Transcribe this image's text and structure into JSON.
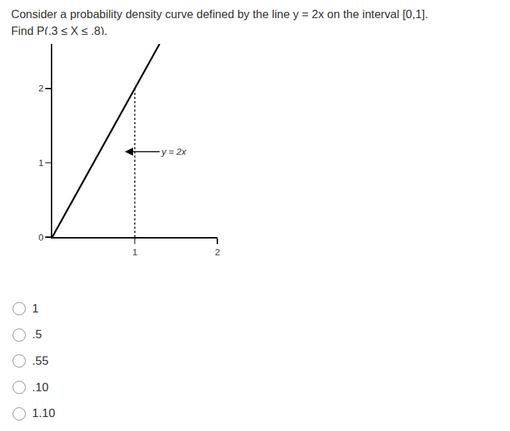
{
  "question": [
    "Consider a probability density curve defined by the line y = 2x on the interval [0,1].",
    "Find P(.3 ≤ X ≤ .8)."
  ],
  "chart_data": {
    "type": "line",
    "series": [
      {
        "x": [
          0,
          1.3
        ],
        "values": [
          0,
          2.6
        ],
        "line_style": "solid",
        "color": "#000000"
      },
      {
        "x": [
          1,
          1
        ],
        "values": [
          0,
          2
        ],
        "line_style": "dot",
        "color": "#000000"
      }
    ],
    "xlim": [
      0,
      2
    ],
    "xticks": [
      1,
      2
    ],
    "ylim": [
      0,
      2.6
    ],
    "yticks": [
      0,
      1,
      2
    ],
    "grid": false,
    "annotations": [
      {
        "text": "y = 2x",
        "x": 0.88,
        "y": 1.15,
        "ax": 1.3
      }
    ]
  },
  "options": [
    "1",
    ".5",
    ".55",
    ".10",
    "1.10"
  ]
}
